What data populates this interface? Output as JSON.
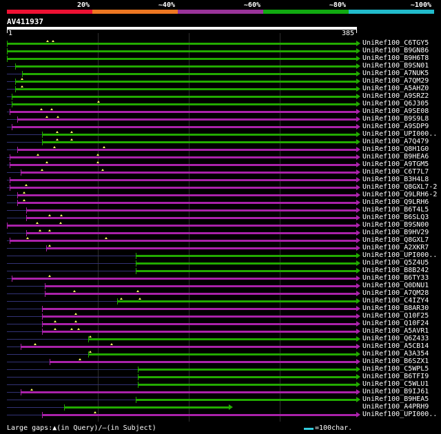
{
  "legend": {
    "bins": [
      {
        "label": "20%",
        "color": "#ee1133"
      },
      {
        "label": "~40%",
        "color": "#ee7722"
      },
      {
        "label": "~60%",
        "color": "#993399"
      },
      {
        "label": "~80%",
        "color": "#11aa11"
      },
      {
        "label": "~100%",
        "color": "#22bbcc"
      }
    ]
  },
  "query": {
    "name": "AV411937",
    "start": "1",
    "end": "385"
  },
  "colors": {
    "green": "#22aa00",
    "magenta": "#aa22aa",
    "underline": "#333377",
    "gap": "#ffff66"
  },
  "hits": [
    {
      "label": "UniRef100_C6TGY5",
      "color": "green",
      "start": 1,
      "end": 385,
      "arrow": true,
      "gaps": [
        46,
        52
      ]
    },
    {
      "label": "UniRef100_B9GN86",
      "color": "green",
      "start": 1,
      "end": 385,
      "arrow": true,
      "gaps": []
    },
    {
      "label": "UniRef100_B9H6T8",
      "color": "green",
      "start": 1,
      "end": 385,
      "arrow": true,
      "gaps": []
    },
    {
      "label": "UniRef100_B9SN01",
      "color": "green",
      "start": 10,
      "end": 385,
      "arrow": true,
      "gaps": []
    },
    {
      "label": "UniRef100_A7NUK5",
      "color": "green",
      "start": 18,
      "end": 385,
      "arrow": true,
      "gaps": []
    },
    {
      "label": "UniRef100_A7QM29",
      "color": "green",
      "start": 10,
      "end": 385,
      "arrow": true,
      "gaps": [
        18
      ]
    },
    {
      "label": "UniRef100_A5AHZ0",
      "color": "green",
      "start": 10,
      "end": 385,
      "arrow": true,
      "gaps": [
        18
      ]
    },
    {
      "label": "UniRef100_A9SRZ2",
      "color": "green",
      "start": 6,
      "end": 385,
      "arrow": true,
      "gaps": []
    },
    {
      "label": "UniRef100_Q6J305",
      "color": "green",
      "start": 6,
      "end": 385,
      "arrow": true,
      "gaps": [
        102
      ]
    },
    {
      "label": "UniRef100_A9SE08",
      "color": "magenta",
      "start": 4,
      "end": 385,
      "arrow": true,
      "gaps": [
        39,
        50
      ]
    },
    {
      "label": "UniRef100_B9S9L8",
      "color": "magenta",
      "start": 12,
      "end": 385,
      "arrow": true,
      "gaps": [
        45,
        57
      ]
    },
    {
      "label": "UniRef100_A9SDP9",
      "color": "magenta",
      "start": 6,
      "end": 385,
      "arrow": true,
      "gaps": []
    },
    {
      "label": "UniRef100_UPI000..",
      "color": "green",
      "start": 40,
      "end": 385,
      "arrow": true,
      "gaps": [
        56,
        72
      ]
    },
    {
      "label": "UniRef100_A7Q479",
      "color": "green",
      "start": 40,
      "end": 385,
      "arrow": true,
      "gaps": [
        56,
        72
      ]
    },
    {
      "label": "UniRef100_Q8H1G0",
      "color": "magenta",
      "start": 12,
      "end": 385,
      "arrow": true,
      "gaps": [
        53,
        108
      ]
    },
    {
      "label": "UniRef100_B9HEA6",
      "color": "magenta",
      "start": 4,
      "end": 385,
      "arrow": true,
      "gaps": [
        35,
        101
      ]
    },
    {
      "label": "UniRef100_A9TGM5",
      "color": "magenta",
      "start": 4,
      "end": 385,
      "arrow": true,
      "gaps": [
        45,
        101
      ]
    },
    {
      "label": "UniRef100_C6T7L7",
      "color": "magenta",
      "start": 16,
      "end": 385,
      "arrow": true,
      "gaps": [
        40,
        106
      ]
    },
    {
      "label": "UniRef100_B3H4L8",
      "color": "magenta",
      "start": 4,
      "end": 385,
      "arrow": true,
      "gaps": []
    },
    {
      "label": "UniRef100_Q8GXL7-2",
      "color": "magenta",
      "start": 4,
      "end": 385,
      "arrow": true,
      "gaps": [
        22
      ]
    },
    {
      "label": "UniRef100_Q9LRH6-2",
      "color": "magenta",
      "start": 12,
      "end": 385,
      "arrow": true,
      "gaps": [
        20
      ]
    },
    {
      "label": "UniRef100_Q9LRH6",
      "color": "magenta",
      "start": 12,
      "end": 385,
      "arrow": true,
      "gaps": [
        20
      ]
    },
    {
      "label": "UniRef100_B6T4L5",
      "color": "magenta",
      "start": 22,
      "end": 385,
      "arrow": true,
      "gaps": []
    },
    {
      "label": "UniRef100_B6SLQ3",
      "color": "magenta",
      "start": 22,
      "end": 385,
      "arrow": true,
      "gaps": [
        48,
        61
      ]
    },
    {
      "label": "UniRef100_B9SN00",
      "color": "magenta",
      "start": 1,
      "end": 385,
      "arrow": true,
      "gaps": [
        34,
        60
      ]
    },
    {
      "label": "UniRef100_B9HV29",
      "color": "magenta",
      "start": 22,
      "end": 385,
      "arrow": true,
      "gaps": [
        37,
        48
      ]
    },
    {
      "label": "UniRef100_Q8GXL7",
      "color": "magenta",
      "start": 4,
      "end": 385,
      "arrow": true,
      "gaps": [
        24,
        110
      ]
    },
    {
      "label": "UniRef100_A2XKR7",
      "color": "magenta",
      "start": 44,
      "end": 385,
      "arrow": true,
      "gaps": [
        48
      ]
    },
    {
      "label": "UniRef100_UPI000..",
      "color": "green",
      "start": 143,
      "end": 385,
      "arrow": true,
      "gaps": []
    },
    {
      "label": "UniRef100_Q5Z4U5",
      "color": "green",
      "start": 143,
      "end": 385,
      "arrow": true,
      "gaps": []
    },
    {
      "label": "UniRef100_B8B242",
      "color": "green",
      "start": 143,
      "end": 385,
      "arrow": true,
      "gaps": []
    },
    {
      "label": "UniRef100_B6TY33",
      "color": "magenta",
      "start": 6,
      "end": 385,
      "arrow": true,
      "gaps": [
        48
      ]
    },
    {
      "label": "UniRef100_Q0DNU1",
      "color": "magenta",
      "start": 43,
      "end": 385,
      "arrow": true,
      "gaps": []
    },
    {
      "label": "UniRef100_A7QM28",
      "color": "magenta",
      "start": 43,
      "end": 385,
      "arrow": true,
      "gaps": [
        75,
        145
      ]
    },
    {
      "label": "UniRef100_C4IZY4",
      "color": "green",
      "start": 122,
      "end": 385,
      "arrow": true,
      "gaps": [
        127,
        147
      ]
    },
    {
      "label": "UniRef100_B8AR30",
      "color": "magenta",
      "start": 40,
      "end": 385,
      "arrow": true,
      "gaps": []
    },
    {
      "label": "UniRef100_Q10F25",
      "color": "magenta",
      "start": 40,
      "end": 385,
      "arrow": true,
      "gaps": [
        77
      ]
    },
    {
      "label": "UniRef100_Q10F24",
      "color": "magenta",
      "start": 40,
      "end": 385,
      "arrow": true,
      "gaps": [
        54,
        77
      ]
    },
    {
      "label": "UniRef100_A5AVR1",
      "color": "magenta",
      "start": 40,
      "end": 385,
      "arrow": true,
      "gaps": [
        54,
        72,
        80
      ]
    },
    {
      "label": "UniRef100_Q6Z433",
      "color": "green",
      "start": 90,
      "end": 385,
      "arrow": true,
      "gaps": [
        93
      ]
    },
    {
      "label": "UniRef100_A5CB14",
      "color": "magenta",
      "start": 16,
      "end": 385,
      "arrow": true,
      "gaps": [
        32,
        116
      ]
    },
    {
      "label": "UniRef100_A3A354",
      "color": "green",
      "start": 90,
      "end": 385,
      "arrow": true,
      "gaps": [
        93
      ]
    },
    {
      "label": "UniRef100_B6SZX1",
      "color": "magenta",
      "start": 48,
      "end": 385,
      "arrow": true,
      "gaps": [
        81
      ]
    },
    {
      "label": "UniRef100_C5WPL5",
      "color": "green",
      "start": 145,
      "end": 385,
      "arrow": true,
      "gaps": []
    },
    {
      "label": "UniRef100_B6TFI9",
      "color": "green",
      "start": 145,
      "end": 385,
      "arrow": true,
      "gaps": []
    },
    {
      "label": "UniRef100_C5WLU1",
      "color": "green",
      "start": 145,
      "end": 385,
      "arrow": true,
      "gaps": []
    },
    {
      "label": "UniRef100_B9IJ61",
      "color": "magenta",
      "start": 16,
      "end": 385,
      "arrow": true,
      "gaps": [
        28
      ]
    },
    {
      "label": "UniRef100_B9HEA5",
      "color": "green",
      "start": 143,
      "end": 385,
      "arrow": true,
      "gaps": []
    },
    {
      "label": "UniRef100_A4PRH9",
      "color": "green",
      "start": 64,
      "end": 245,
      "arrow": true,
      "gaps": []
    },
    {
      "label": "UniRef100_UPI000..",
      "color": "magenta",
      "start": 40,
      "end": 385,
      "arrow": true,
      "gaps": [
        98
      ]
    }
  ],
  "footer": {
    "gaps_text": "Large gaps:▲(in Query)/—(in Subject)",
    "scale_text": "=100char."
  }
}
